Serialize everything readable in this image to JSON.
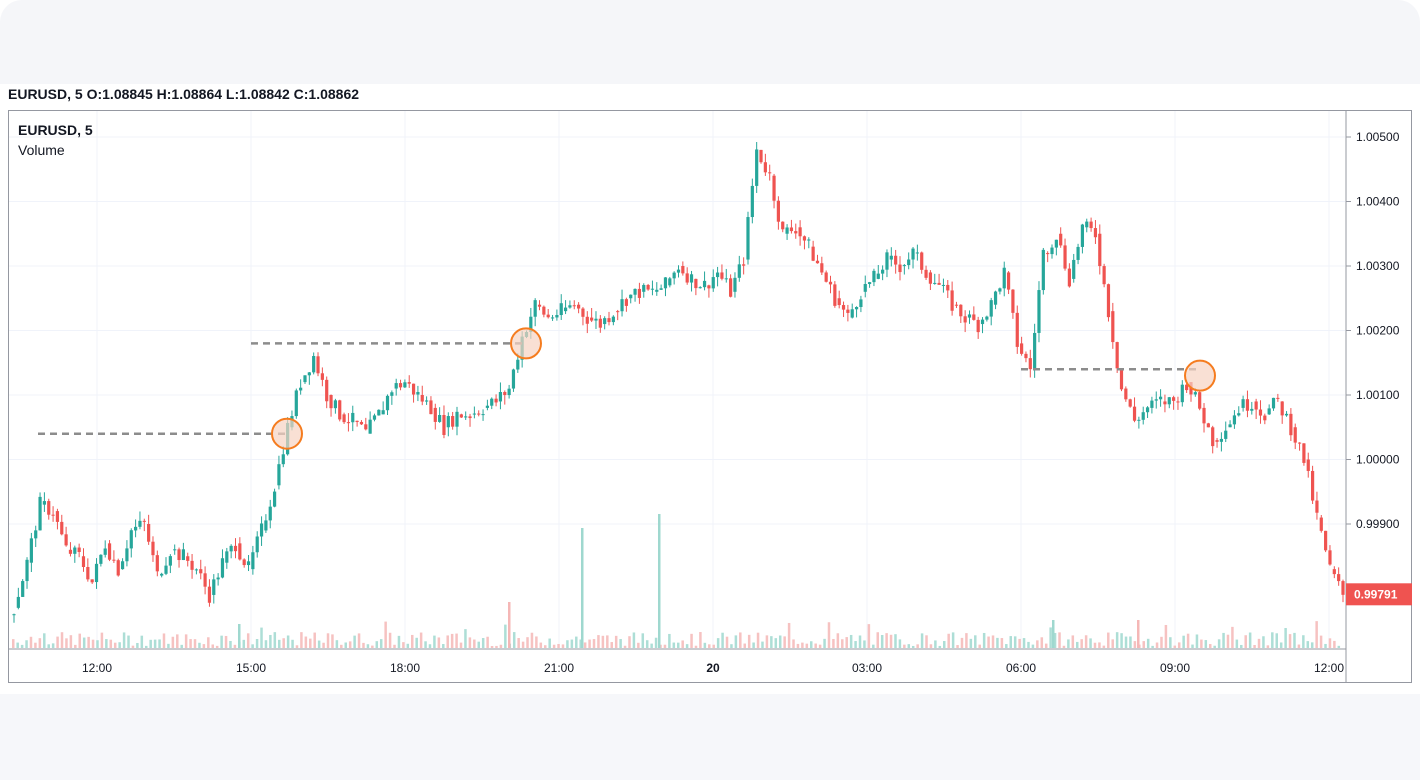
{
  "header": {
    "symbol": "EURUSD, 5",
    "o_label": "O:",
    "o_value": "1.08845",
    "h_label": "H:",
    "h_value": "1.08864",
    "l_label": "L:",
    "l_value": "1.08842",
    "c_label": "C:",
    "c_value": "1.08862"
  },
  "legend": {
    "symbol": "EURUSD, 5",
    "volume": "Volume"
  },
  "colors": {
    "up": "#26a69a",
    "down": "#ef5350",
    "grid": "#f0f3fa",
    "dashed": "#8c8c8c",
    "marker": "#f57c1f",
    "price_tag": "#ef5350"
  },
  "chart_data": {
    "type": "candlestick",
    "title": "EURUSD, 5",
    "x_ticks": [
      "12:00",
      "15:00",
      "18:00",
      "21:00",
      "20",
      "03:00",
      "06:00",
      "09:00",
      "12:00"
    ],
    "y_ticks": [
      "1.00500",
      "1.00400",
      "1.00300",
      "1.00200",
      "1.00100",
      "1.00000",
      "0.99900"
    ],
    "y_range": [
      0.9975,
      1.0053
    ],
    "last_price": "0.99791",
    "close_series": [
      0.9977,
      0.9984,
      0.9993,
      0.9992,
      0.9986,
      0.9985,
      0.9981,
      0.9987,
      0.9983,
      0.9989,
      0.999,
      0.9982,
      0.9986,
      0.9985,
      0.9983,
      0.9979,
      0.9984,
      0.9987,
      0.9983,
      0.9989,
      0.9996,
      1.0005,
      1.0012,
      1.0016,
      1.001,
      1.0007,
      1.0006,
      1.0004,
      1.0007,
      1.0011,
      1.0012,
      1.001,
      1.0008,
      1.0005,
      1.0007,
      1.0007,
      1.0008,
      1.0009,
      1.0011,
      1.0019,
      1.0024,
      1.0022,
      1.0023,
      1.0024,
      1.0022,
      1.0021,
      1.0023,
      1.0025,
      1.0026,
      1.0026,
      1.0027,
      1.003,
      1.0028,
      1.0027,
      1.0029,
      1.0026,
      1.0031,
      1.0048,
      1.0044,
      1.0035,
      1.0036,
      1.0033,
      1.0029,
      1.0025,
      1.0022,
      1.0026,
      1.0028,
      1.0031,
      1.003,
      1.0032,
      1.0029,
      1.0027,
      1.0024,
      1.0022,
      1.0021,
      1.0024,
      1.0029,
      1.0018,
      1.0014,
      1.0032,
      1.0035,
      1.0028,
      1.0036,
      1.0035,
      1.0023,
      1.0011,
      1.0006,
      1.0008,
      1.0009,
      1.0009,
      1.0012,
      1.0008,
      1.0003,
      1.0005,
      1.0008,
      1.0009,
      1.0007,
      1.0009,
      1.0005,
      1.0,
      0.9991,
      0.9983,
      0.9979
    ],
    "volume_peaks": [
      "low",
      "spike-20:30",
      "spike-23:30"
    ],
    "annotations": [
      {
        "type": "dashed-level",
        "price": 1.0004
      },
      {
        "type": "dashed-level",
        "price": 1.0018
      },
      {
        "type": "dashed-level",
        "price": 1.0014
      },
      {
        "type": "circle-marker",
        "price": 1.0004
      },
      {
        "type": "circle-marker",
        "price": 1.0018
      },
      {
        "type": "circle-marker",
        "price": 1.0013
      }
    ]
  }
}
